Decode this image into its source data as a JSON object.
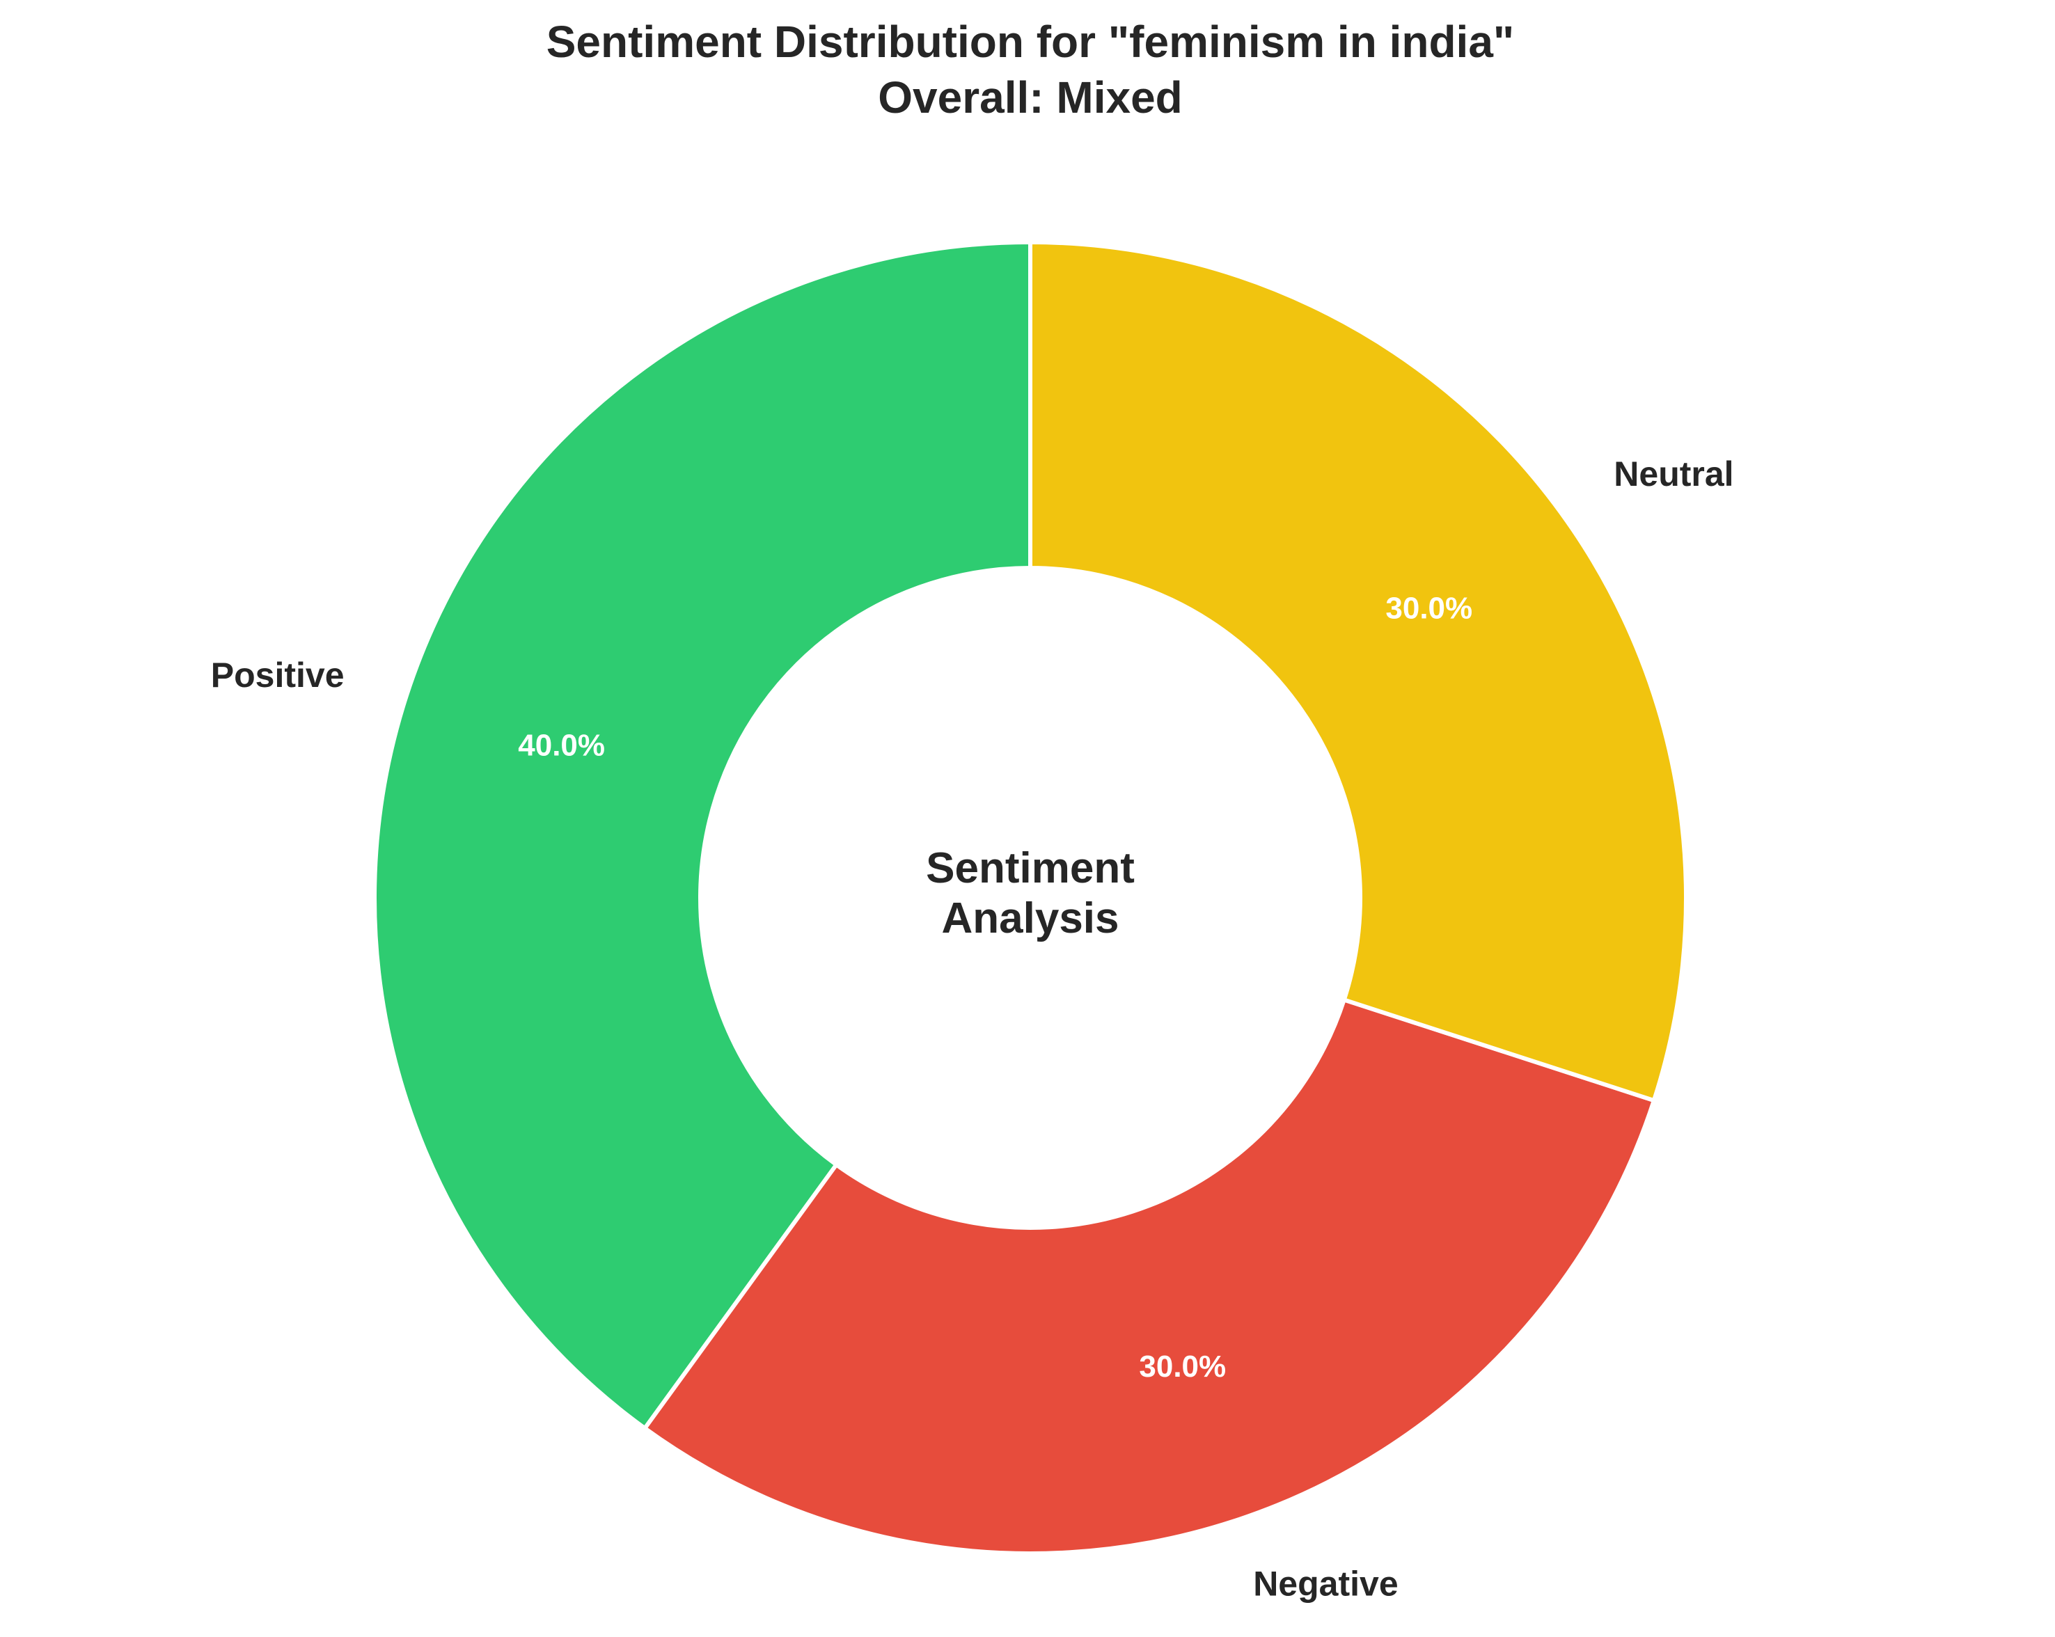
{
  "chart_data": {
    "type": "pie",
    "title": "Sentiment Distribution for \"feminism in india\"",
    "subtitle": "Overall: Mixed",
    "center_label": [
      "Sentiment",
      "Analysis"
    ],
    "categories": [
      "Positive",
      "Negative",
      "Neutral"
    ],
    "values": [
      40.0,
      30.0,
      30.0
    ],
    "percent_labels": [
      "40.0%",
      "30.0%",
      "30.0%"
    ],
    "colors": [
      "#2ECC71",
      "#E74C3C",
      "#F1C40F"
    ],
    "start_angle_deg": 90,
    "direction": "counterclockwise",
    "donut": true
  }
}
